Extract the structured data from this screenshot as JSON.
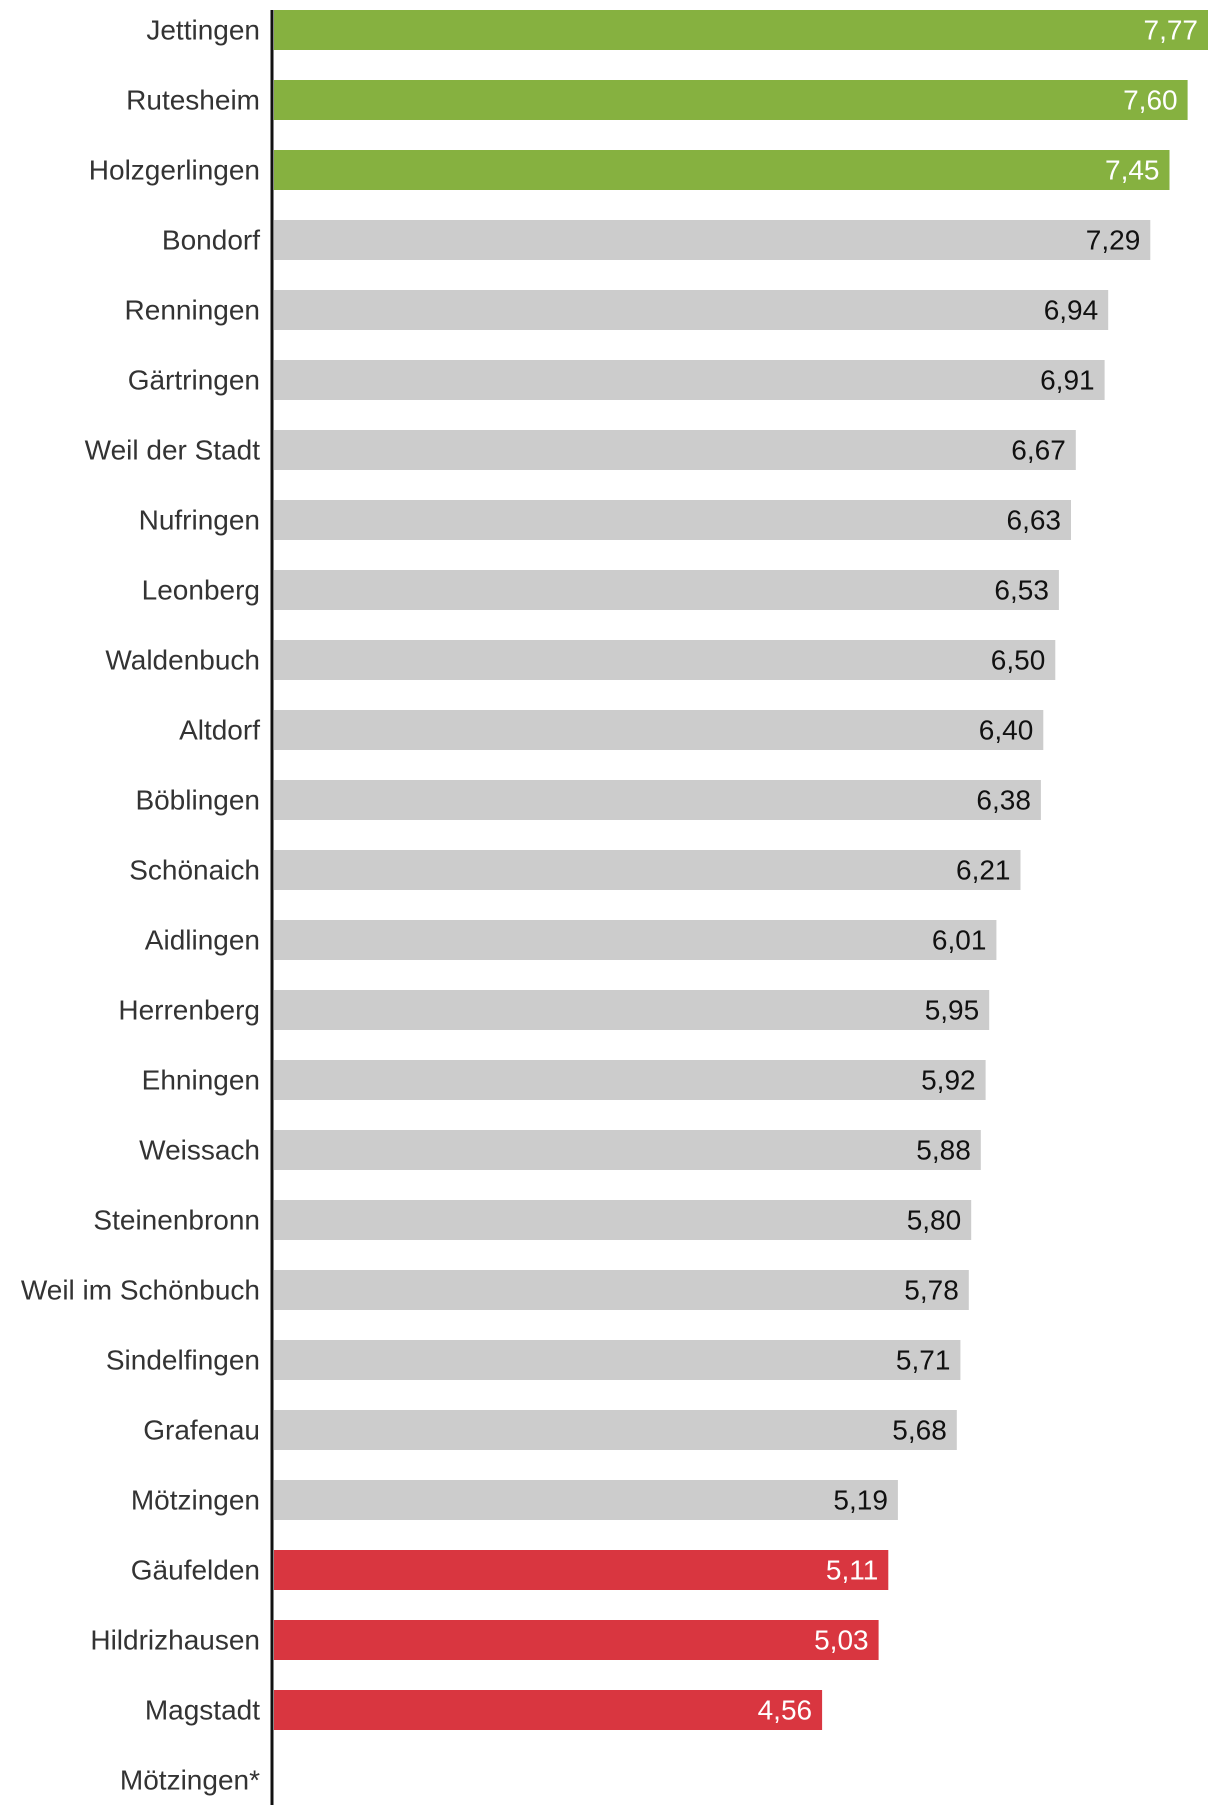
{
  "chart_data": {
    "type": "bar",
    "orientation": "horizontal",
    "title": "",
    "xlabel": "",
    "ylabel": "",
    "xlim": [
      0,
      7.77
    ],
    "grid": false,
    "legend": "none",
    "decimal_separator": ",",
    "colors": {
      "top": "#86b140",
      "middle": "#cccccc",
      "bottom": "#d93640",
      "axis": "#111111",
      "label": "#333333",
      "value_on_light": "#111111",
      "value_on_dark": "#ffffff"
    },
    "categories": [
      "Jettingen",
      "Rutesheim",
      "Holzgerlingen",
      "Bondorf",
      "Renningen",
      "Gärtringen",
      "Weil der Stadt",
      "Nufringen",
      "Leonberg",
      "Waldenbuch",
      "Altdorf",
      "Böblingen",
      "Schönaich",
      "Aidlingen",
      "Herrenberg",
      "Ehningen",
      "Weissach",
      "Steinenbronn",
      "Weil im Schönbuch",
      "Sindelfingen",
      "Grafenau",
      "Mötzingen",
      "Gäufelden",
      "Hildrizhausen",
      "Magstadt",
      "Mötzingen*"
    ],
    "values": [
      7.77,
      7.6,
      7.45,
      7.29,
      6.94,
      6.91,
      6.67,
      6.63,
      6.53,
      6.5,
      6.4,
      6.38,
      6.21,
      6.01,
      5.95,
      5.92,
      5.88,
      5.8,
      5.78,
      5.71,
      5.68,
      5.19,
      5.11,
      5.03,
      4.56,
      null
    ],
    "value_labels": [
      "7,77",
      "7,60",
      "7,45",
      "7,29",
      "6,94",
      "6,91",
      "6,67",
      "6,63",
      "6,53",
      "6,50",
      "6,40",
      "6,38",
      "6,21",
      "6,01",
      "5,95",
      "5,92",
      "5,88",
      "5,80",
      "5,78",
      "5,71",
      "5,68",
      "5,19",
      "5,11",
      "5,03",
      "4,56",
      ""
    ],
    "groups": [
      "top",
      "top",
      "top",
      "middle",
      "middle",
      "middle",
      "middle",
      "middle",
      "middle",
      "middle",
      "middle",
      "middle",
      "middle",
      "middle",
      "middle",
      "middle",
      "middle",
      "middle",
      "middle",
      "middle",
      "middle",
      "middle",
      "bottom",
      "bottom",
      "bottom",
      "none"
    ]
  }
}
